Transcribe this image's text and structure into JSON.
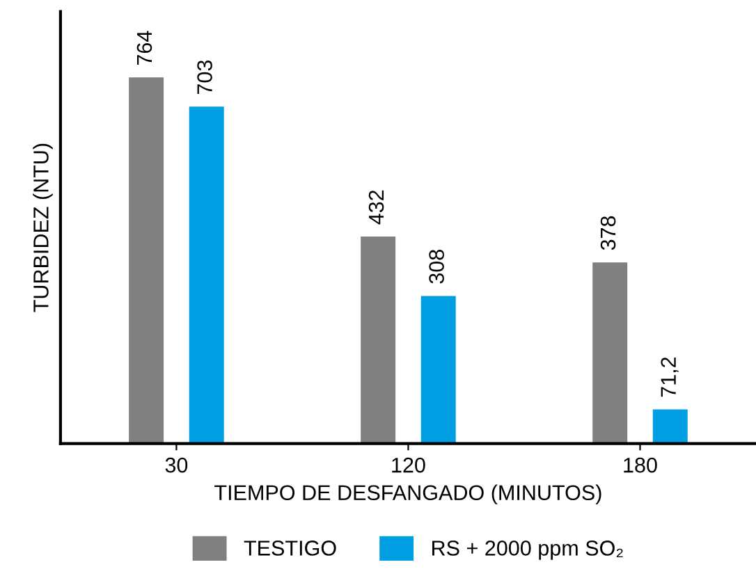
{
  "chart_data": {
    "type": "bar",
    "ylabel": "TURBIDEZ (NTU)",
    "xlabel": "TIEMPO DE DESFANGADO (MINUTOS)",
    "categories": [
      "30",
      "120",
      "180"
    ],
    "series": [
      {
        "name": "TESTIGO",
        "color": "#808080",
        "values": [
          764,
          432,
          378
        ],
        "value_labels": [
          "764",
          "432",
          "378"
        ]
      },
      {
        "name": "RS + 2000 ppm SO₂",
        "color": "#009fe3",
        "values": [
          703,
          308,
          71.2
        ],
        "value_labels": [
          "703",
          "308",
          "71,2"
        ]
      }
    ],
    "legend": "bottom",
    "grid": false,
    "tick_labels": "x"
  }
}
